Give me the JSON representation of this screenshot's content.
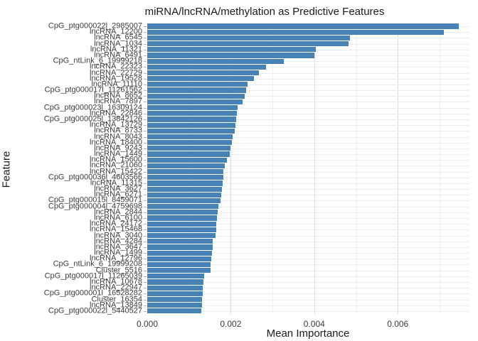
{
  "chart_data": {
    "type": "bar",
    "orientation": "horizontal",
    "title": "miRNA/lncRNA/methylation as Predictive Features",
    "xlabel": "Mean Importance",
    "ylabel": "Feature",
    "xlim": [
      0,
      0.0077
    ],
    "x_ticks": [
      0.0,
      0.002,
      0.004,
      0.006
    ],
    "x_tick_labels": [
      "0.000",
      "0.002",
      "0.004",
      "0.006"
    ],
    "x_minor_ticks": [
      0.001,
      0.003,
      0.005,
      0.007
    ],
    "grid": true,
    "legend": "none",
    "bar_color": "#4682b4",
    "categories": [
      "CpG_ptg000022l_2985007",
      "lncRNA_12200",
      "lncRNA_6545",
      "lncRNA_1034",
      "lncRNA_11321",
      "lncRNA_6491",
      "CpG_ntLink_6_19999218",
      "lncRNA_22323",
      "lncRNA_22729",
      "lncRNA_19528",
      "lncRNA_11110",
      "CpG_ptg000017l_11261562",
      "lncRNA_8652",
      "lncRNA_7897",
      "CpG_ptg000023l_16309124",
      "lncRNA_22846",
      "CpG_ptg000025l_13842126",
      "lncRNA_13729",
      "lncRNA_8733",
      "lncRNA_8043",
      "lncRNA_18400",
      "lncRNA_9243",
      "lncRNA_1449",
      "lncRNA_15600",
      "lncRNA_21060",
      "lncRNA_15422",
      "CpG_ptg000036l_4603566",
      "lncRNA_11315",
      "lncRNA_3627",
      "lncRNA_6271",
      "CpG_ptg000015l_8459071",
      "CpG_ptg000004l_4759698",
      "lncRNA_2844",
      "lncRNA_6100",
      "lncRNA_24172",
      "lncRNA_15468",
      "lncRNA_3040",
      "lncRNA_4284",
      "lncRNA_3647",
      "lncRNA_1499",
      "lncRNA_12796",
      "CpG_ntLink_6_19999208",
      "Cluster_5516",
      "CpG_ptg000017l_11265039",
      "lncRNA_10678",
      "lncRNA_22947",
      "CpG_ptg000001l_16528282",
      "Cluster_16354",
      "lncRNA_13849",
      "CpG_ptg000022l_5440527"
    ],
    "values": [
      0.00746,
      0.00711,
      0.00486,
      0.00482,
      0.00403,
      0.00401,
      0.00327,
      0.00285,
      0.00267,
      0.00256,
      0.0024,
      0.00237,
      0.00234,
      0.00229,
      0.00216,
      0.00215,
      0.00213,
      0.00211,
      0.00209,
      0.00205,
      0.00202,
      0.00199,
      0.00198,
      0.0019,
      0.00185,
      0.00183,
      0.00182,
      0.00181,
      0.00179,
      0.00177,
      0.00176,
      0.0017,
      0.00168,
      0.00167,
      0.00166,
      0.00166,
      0.00163,
      0.00157,
      0.00157,
      0.00155,
      0.00153,
      0.00152,
      0.00152,
      0.00137,
      0.00134,
      0.00133,
      0.00133,
      0.00131,
      0.00131,
      0.0013
    ]
  },
  "colors": {
    "background": "#ffffff",
    "bar": "#4682b4",
    "grid_major": "#dedede",
    "grid_minor": "#efefef",
    "grid_row": "#ececec",
    "tick_text": "#3c3c3c",
    "title_text": "#1a1a1a"
  }
}
